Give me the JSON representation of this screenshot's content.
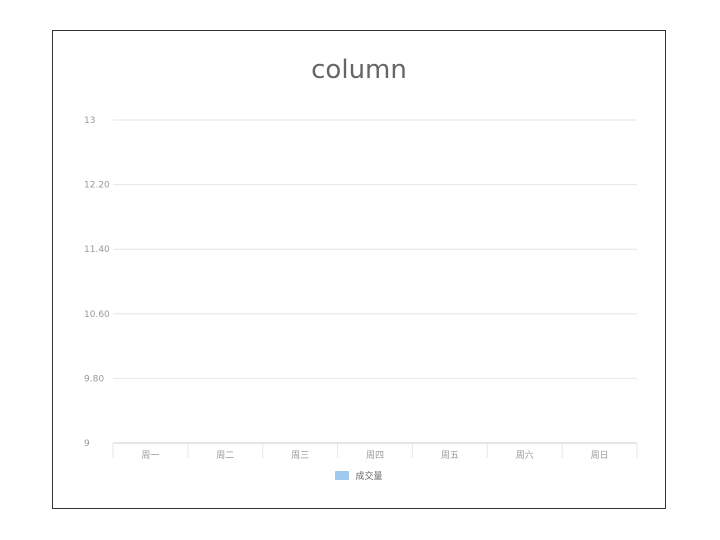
{
  "chart_data": {
    "type": "bar",
    "title": "column",
    "categories": [
      "周一",
      "周二",
      "周三",
      "周四",
      "周五",
      "周六",
      "周日"
    ],
    "series": [
      {
        "name": "成交量",
        "values": [
          null,
          null,
          null,
          null,
          null,
          null,
          null
        ],
        "color": "#9ec9ec"
      }
    ],
    "yticks": [
      "9",
      "9.80",
      "10.60",
      "11.40",
      "12.20",
      "13"
    ],
    "ylim": [
      9,
      13
    ],
    "grid": true,
    "legend_position": "bottom",
    "colors": {
      "gridline": "#e6e6e6",
      "axis": "#cccccc",
      "label": "#999999",
      "title": "#666666"
    }
  }
}
